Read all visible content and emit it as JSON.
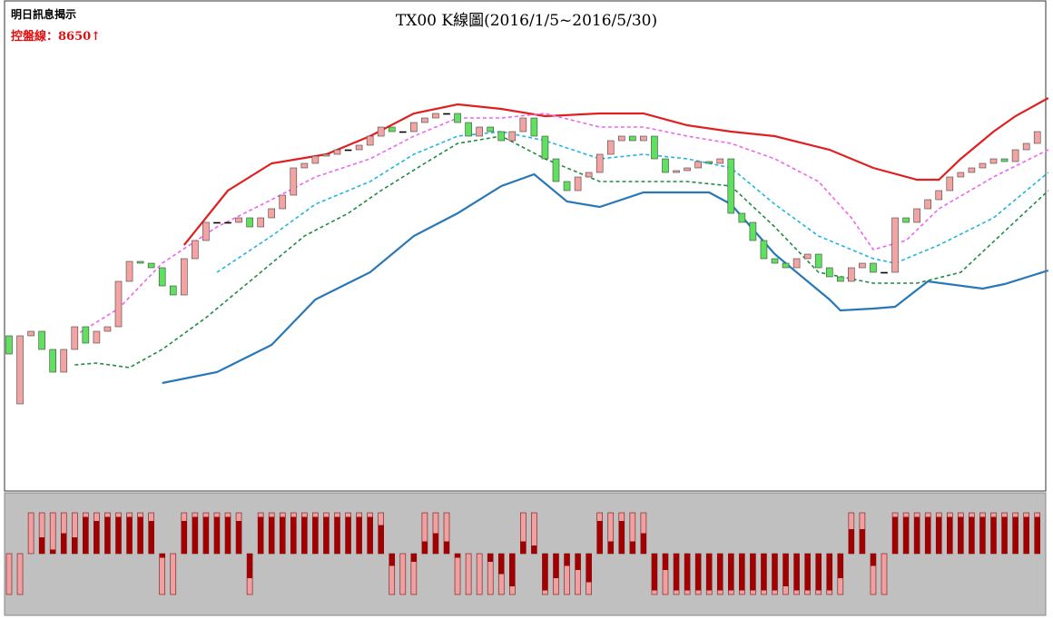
{
  "chart_data": {
    "type": "candlestick",
    "title": "TX00 K線圖(2016/1/5~2016/5/30)",
    "annotations": [
      "明日訊息揭示",
      "控盤線：8650↑"
    ],
    "ylim": [
      7600,
      8800
    ],
    "up_color": "#f4a3a3",
    "down_color": "#5fe05f",
    "open": [
      7930,
      7705,
      7930,
      7945,
      7885,
      7810,
      7885,
      7960,
      7906,
      7945,
      7960,
      8110,
      8176,
      8170,
      8155,
      8095,
      8065,
      8185,
      8245,
      8305,
      8305,
      8305,
      8320,
      8290,
      8320,
      8350,
      8395,
      8485,
      8500,
      8524,
      8530,
      8545,
      8545,
      8560,
      8590,
      8620,
      8605,
      8605,
      8635,
      8650,
      8665,
      8665,
      8635,
      8590,
      8620,
      8605,
      8575,
      8605,
      8650,
      8590,
      8515,
      8440,
      8410,
      8455,
      8470,
      8530,
      8575,
      8590,
      8575,
      8590,
      8515,
      8470,
      8476,
      8485,
      8506,
      8500,
      8515,
      8335,
      8305,
      8245,
      8185,
      8170,
      8155,
      8185,
      8200,
      8155,
      8125,
      8110,
      8155,
      8170,
      8140,
      8140,
      8320,
      8305,
      8350,
      8380,
      8410,
      8455,
      8470,
      8485,
      8500,
      8515,
      8506,
      8545,
      8566
    ],
    "close": [
      7870,
      7930,
      7945,
      7885,
      7810,
      7885,
      7960,
      7906,
      7945,
      7960,
      8110,
      8176,
      8170,
      8155,
      8095,
      8065,
      8185,
      8245,
      8305,
      8305,
      8305,
      8320,
      8290,
      8320,
      8350,
      8395,
      8485,
      8500,
      8524,
      8530,
      8545,
      8545,
      8560,
      8590,
      8620,
      8605,
      8605,
      8635,
      8650,
      8665,
      8665,
      8635,
      8590,
      8620,
      8605,
      8575,
      8605,
      8650,
      8590,
      8515,
      8440,
      8410,
      8455,
      8470,
      8530,
      8575,
      8590,
      8575,
      8590,
      8515,
      8470,
      8476,
      8485,
      8506,
      8500,
      8515,
      8335,
      8305,
      8245,
      8185,
      8170,
      8155,
      8185,
      8200,
      8155,
      8125,
      8110,
      8155,
      8170,
      8140,
      8140,
      8320,
      8305,
      8350,
      8380,
      8410,
      8455,
      8470,
      8485,
      8500,
      8515,
      8506,
      8545,
      8566,
      8605
    ],
    "series": [
      {
        "color": "#e02020",
        "dash": false,
        "x": [
          16,
          20,
          24,
          29,
          33,
          37,
          41,
          45,
          49,
          54,
          58,
          62,
          66,
          70,
          75,
          79,
          83,
          85,
          87,
          90,
          92,
          95
        ],
        "values": [
          8230,
          8410,
          8500,
          8530,
          8590,
          8665,
          8695,
          8680,
          8656,
          8665,
          8665,
          8626,
          8605,
          8590,
          8545,
          8485,
          8446,
          8446,
          8515,
          8605,
          8656,
          8716
        ]
      },
      {
        "color": "#2878b8",
        "dash": false,
        "x": [
          14,
          19,
          24,
          28,
          33,
          37,
          41,
          45,
          48,
          51,
          54,
          58,
          62,
          64,
          66,
          70,
          75,
          76,
          79,
          81,
          84,
          89,
          91,
          95
        ],
        "values": [
          7774,
          7810,
          7900,
          8050,
          8140,
          8260,
          8335,
          8425,
          8464,
          8374,
          8356,
          8404,
          8404,
          8404,
          8365,
          8200,
          8050,
          8014,
          8020,
          8026,
          8110,
          8086,
          8101,
          8146
        ]
      },
      {
        "color": "#ee66ee",
        "dash": true,
        "x": [
          6,
          10,
          14,
          19,
          24,
          28,
          33,
          37,
          41,
          45,
          49,
          54,
          58,
          62,
          66,
          70,
          74,
          77,
          79,
          82,
          85,
          90,
          95
        ],
        "values": [
          7930,
          8020,
          8170,
          8290,
          8380,
          8455,
          8515,
          8590,
          8650,
          8650,
          8665,
          8620,
          8620,
          8590,
          8566,
          8515,
          8440,
          8320,
          8215,
          8245,
          8350,
          8455,
          8545
        ]
      },
      {
        "color": "#22b5e0",
        "dash": true,
        "x": [
          19,
          24,
          28,
          33,
          37,
          41,
          45,
          49,
          54,
          58,
          62,
          66,
          70,
          74,
          79,
          81,
          85,
          90,
          95
        ],
        "values": [
          8140,
          8260,
          8365,
          8440,
          8530,
          8590,
          8605,
          8575,
          8515,
          8530,
          8515,
          8485,
          8365,
          8260,
          8185,
          8170,
          8230,
          8320,
          8470
        ]
      },
      {
        "color": "#228b44",
        "dash": true,
        "x": [
          6,
          8,
          11,
          14,
          18,
          23,
          27,
          31,
          34,
          38,
          41,
          45,
          49,
          54,
          58,
          62,
          66,
          70,
          74,
          79,
          83,
          87,
          91,
          95
        ],
        "values": [
          7834,
          7840,
          7825,
          7885,
          7990,
          8140,
          8260,
          8335,
          8410,
          8500,
          8566,
          8590,
          8515,
          8440,
          8440,
          8440,
          8425,
          8290,
          8140,
          8104,
          8104,
          8140,
          8275,
          8410
        ]
      }
    ],
    "signal": {
      "direction": [
        -1,
        -1,
        1,
        1,
        1,
        1,
        1,
        1,
        1,
        1,
        1,
        1,
        1,
        1,
        -1,
        -1,
        1,
        1,
        1,
        1,
        1,
        1,
        -1,
        1,
        1,
        1,
        1,
        1,
        1,
        1,
        1,
        1,
        1,
        1,
        1,
        -1,
        -1,
        -1,
        1,
        1,
        1,
        -1,
        -1,
        -1,
        -1,
        -1,
        -1,
        1,
        1,
        -1,
        -1,
        -1,
        -1,
        -1,
        1,
        1,
        1,
        1,
        1,
        -1,
        -1,
        -1,
        -1,
        -1,
        -1,
        -1,
        -1,
        -1,
        -1,
        -1,
        -1,
        -1,
        -1,
        -1,
        -1,
        -1,
        -1,
        1,
        1,
        -1,
        -1,
        1,
        1,
        1,
        1,
        1,
        1,
        1,
        1,
        1,
        1,
        1,
        1,
        1,
        1
      ],
      "strength": [
        0,
        0,
        0,
        0.4,
        0.1,
        0.5,
        0.4,
        0.9,
        0.8,
        0.9,
        0.9,
        0.9,
        0.9,
        0.8,
        0.1,
        0,
        0.8,
        0.9,
        0.9,
        0.9,
        0.9,
        0.8,
        0.6,
        0.9,
        0.9,
        0.9,
        0.9,
        0.9,
        0.9,
        0.9,
        0.9,
        0.9,
        0.9,
        0.9,
        0.7,
        0.3,
        0,
        0.2,
        0.3,
        0.5,
        0.3,
        0.1,
        0,
        0,
        0.2,
        0.5,
        0.8,
        0.3,
        0.2,
        0.9,
        0.6,
        0.3,
        0.4,
        0.7,
        0.8,
        0.3,
        0.8,
        0.3,
        0.5,
        0.9,
        0.4,
        0.9,
        0.9,
        0.9,
        0.9,
        0.9,
        0.9,
        0.9,
        0.9,
        0.9,
        0.9,
        0.8,
        0.9,
        0.9,
        0.9,
        0.9,
        0.6,
        0.6,
        0.6,
        0.3,
        0,
        0.9,
        0.9,
        0.9,
        0.9,
        0.9,
        0.9,
        0.9,
        0.9,
        0.9,
        0.9,
        0.9,
        0.9,
        0.9,
        0.9
      ]
    }
  }
}
